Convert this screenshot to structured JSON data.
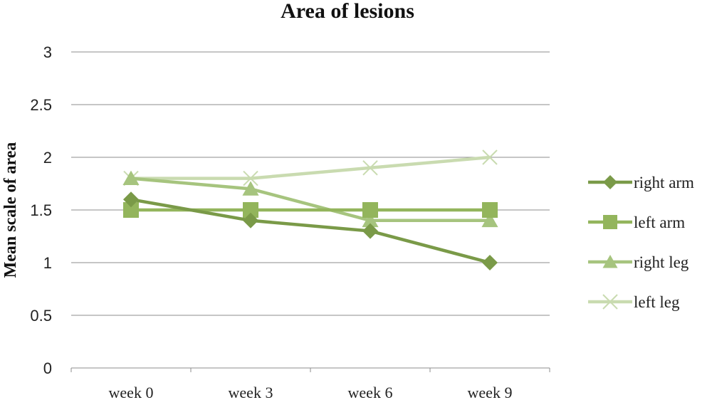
{
  "chart_data": {
    "type": "line",
    "title": "Area  of lesions",
    "xlabel": "",
    "ylabel": "Mean scale of area",
    "categories": [
      "week 0",
      "week 3",
      "week 6",
      "week 9"
    ],
    "ylim": [
      0,
      3
    ],
    "yticks": [
      "0",
      "0.5",
      "1",
      "1.5",
      "2",
      "2.5",
      "3"
    ],
    "grid": true,
    "legend_position": "right",
    "series": [
      {
        "name": "right arm",
        "values": [
          1.6,
          1.4,
          1.3,
          1.0
        ],
        "color": "#7a9a48",
        "marker": "diamond"
      },
      {
        "name": "left arm",
        "values": [
          1.5,
          1.5,
          1.5,
          1.5
        ],
        "color": "#93b55c",
        "marker": "square"
      },
      {
        "name": "right leg",
        "values": [
          1.8,
          1.7,
          1.4,
          1.4
        ],
        "color": "#a6c47e",
        "marker": "triangle"
      },
      {
        "name": "left leg",
        "values": [
          1.8,
          1.8,
          1.9,
          2.0
        ],
        "color": "#c9dbb0",
        "marker": "x"
      }
    ]
  }
}
